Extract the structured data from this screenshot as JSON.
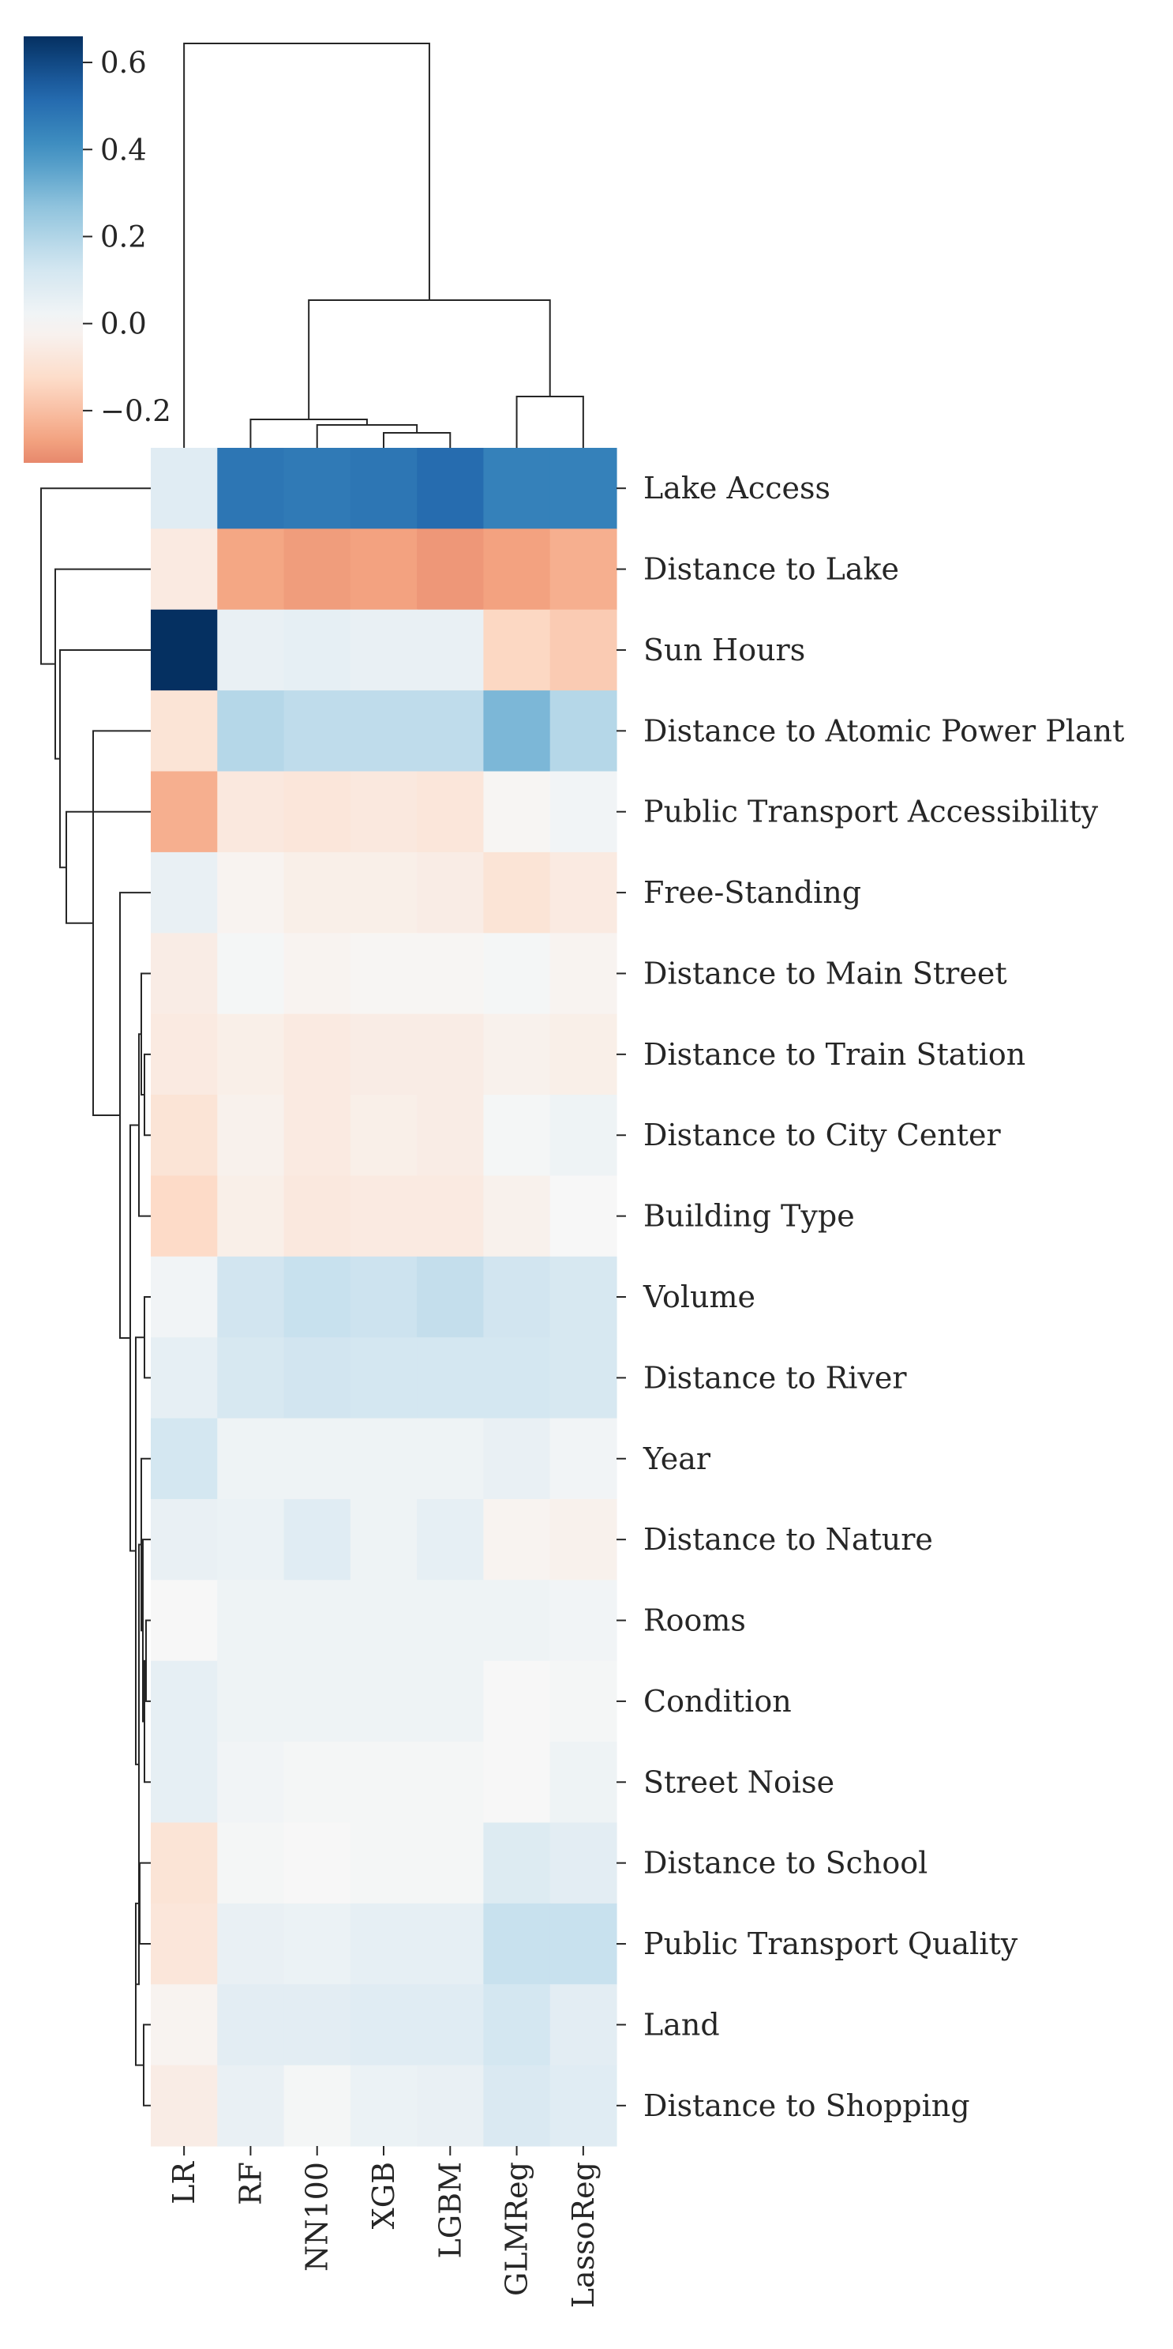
{
  "chart_data": {
    "type": "heatmap",
    "title": "",
    "xlabel": "",
    "ylabel": "",
    "columns": [
      "LR",
      "RF",
      "NN100",
      "XGB",
      "LGBM",
      "GLMReg",
      "LassoReg"
    ],
    "rows": [
      "Lake Access",
      "Distance to Lake",
      "Sun Hours",
      "Distance to Atomic Power Plant",
      "Public Transport Accessibility",
      "Free-Standing",
      "Distance to Main Street",
      "Distance to Train Station",
      "Distance to City Center",
      "Building Type",
      "Volume",
      "Distance to River",
      "Year",
      "Distance to Nature",
      "Rooms",
      "Condition",
      "Street Noise",
      "Distance to School",
      "Public Transport Quality",
      "Land",
      "Distance to Shopping"
    ],
    "values": [
      [
        0.08,
        0.48,
        0.47,
        0.48,
        0.51,
        0.45,
        0.45
      ],
      [
        -0.06,
        -0.26,
        -0.28,
        -0.27,
        -0.29,
        -0.27,
        -0.24
      ],
      [
        0.66,
        0.05,
        0.06,
        0.05,
        0.05,
        -0.14,
        -0.17
      ],
      [
        -0.09,
        0.19,
        0.17,
        0.17,
        0.17,
        0.3,
        0.19
      ],
      [
        -0.24,
        -0.07,
        -0.08,
        -0.07,
        -0.08,
        -0.01,
        0.02
      ],
      [
        0.05,
        -0.02,
        -0.04,
        -0.04,
        -0.05,
        -0.09,
        -0.06
      ],
      [
        -0.05,
        0.01,
        -0.02,
        -0.01,
        -0.01,
        0.01,
        -0.02
      ],
      [
        -0.06,
        -0.04,
        -0.06,
        -0.05,
        -0.05,
        -0.03,
        -0.04
      ],
      [
        -0.09,
        -0.03,
        -0.06,
        -0.04,
        -0.05,
        0.01,
        0.03
      ],
      [
        -0.13,
        -0.04,
        -0.07,
        -0.06,
        -0.06,
        -0.03,
        0.0
      ],
      [
        0.02,
        0.13,
        0.15,
        0.14,
        0.16,
        0.13,
        0.11
      ],
      [
        0.06,
        0.11,
        0.13,
        0.12,
        0.12,
        0.12,
        0.11
      ],
      [
        0.12,
        0.03,
        0.03,
        0.03,
        0.03,
        0.05,
        0.02
      ],
      [
        0.05,
        0.04,
        0.08,
        0.03,
        0.06,
        -0.02,
        -0.03
      ],
      [
        0.0,
        0.03,
        0.03,
        0.03,
        0.03,
        0.03,
        0.02
      ],
      [
        0.06,
        0.03,
        0.03,
        0.03,
        0.03,
        0.0,
        0.01
      ],
      [
        0.06,
        0.02,
        0.01,
        0.01,
        0.01,
        0.0,
        0.03
      ],
      [
        -0.09,
        0.01,
        0.0,
        0.01,
        0.01,
        0.09,
        0.07
      ],
      [
        -0.08,
        0.05,
        0.04,
        0.06,
        0.06,
        0.15,
        0.15
      ],
      [
        -0.02,
        0.07,
        0.07,
        0.08,
        0.08,
        0.12,
        0.07
      ],
      [
        -0.05,
        0.05,
        0.01,
        0.04,
        0.05,
        0.1,
        0.08
      ]
    ],
    "colorbar": {
      "vmin": -0.32,
      "vmax": 0.66,
      "ticks": [
        0.6,
        0.4,
        0.2,
        0.0,
        -0.2
      ],
      "tick_labels": [
        "0.6",
        "0.4",
        "0.2",
        "0.0",
        "−0.2"
      ],
      "colormap": "RdBu",
      "stops": [
        "#67001f",
        "#b2182b",
        "#d6604d",
        "#f4a582",
        "#fddbc7",
        "#f7f7f7",
        "#d1e5f0",
        "#92c5de",
        "#4393c3",
        "#2166ac",
        "#053061"
      ]
    },
    "grid": false,
    "legend": "colorbar-top-left",
    "dendrograms": [
      "columns-top",
      "rows-left"
    ]
  }
}
